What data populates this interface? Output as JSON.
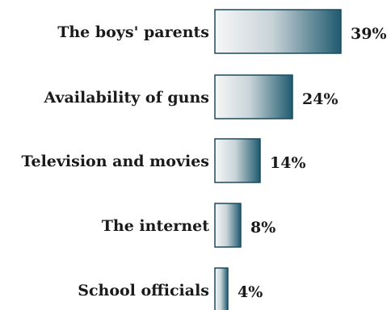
{
  "chart_data": {
    "type": "bar",
    "orientation": "horizontal",
    "categories": [
      "The boys' parents",
      "Availability of guns",
      "Television and movies",
      "The internet",
      "School officials"
    ],
    "values": [
      39,
      24,
      14,
      8,
      4
    ],
    "value_labels": [
      "39%",
      "24%",
      "14%",
      "8%",
      "4%"
    ],
    "title": "",
    "xlabel": "",
    "ylabel": "",
    "xlim": [
      0,
      39
    ],
    "grid": false,
    "colors": {
      "bar_light": "#f7f7f7",
      "bar_dark": "#1f5a70",
      "bar_edge": "#1b4a5e",
      "text": "#1a1a1a"
    }
  }
}
